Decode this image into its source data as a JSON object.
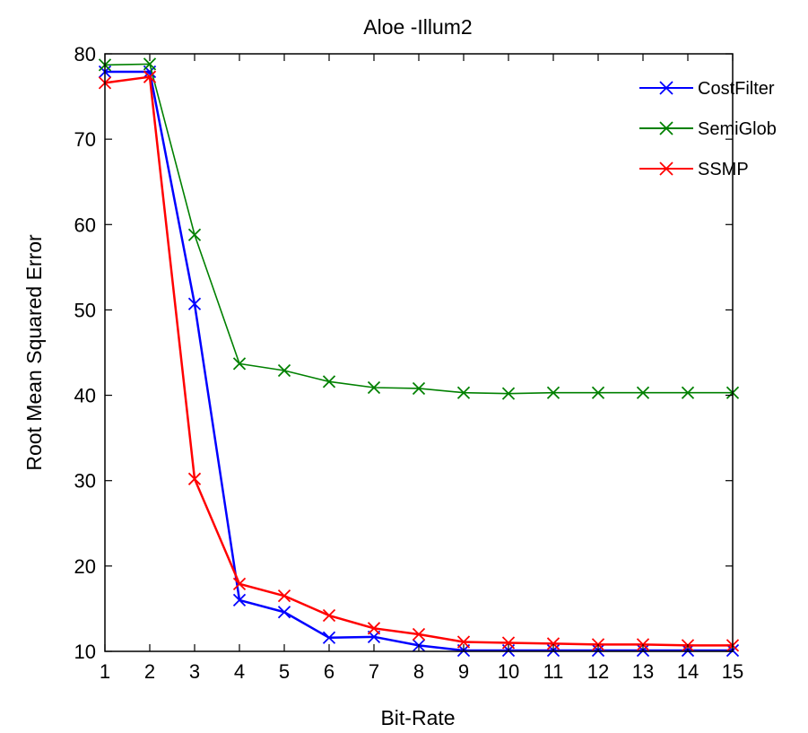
{
  "chart_data": {
    "type": "line",
    "title": "Aloe -Illum2",
    "xlabel": "Bit-Rate",
    "ylabel": "Root Mean Squared Error",
    "xlim": [
      1,
      15
    ],
    "ylim": [
      10,
      80
    ],
    "x": [
      1,
      2,
      3,
      4,
      5,
      6,
      7,
      8,
      9,
      10,
      11,
      12,
      13,
      14,
      15
    ],
    "xticks": [
      "1",
      "2",
      "3",
      "4",
      "5",
      "6",
      "7",
      "8",
      "9",
      "10",
      "11",
      "12",
      "13",
      "14",
      "15"
    ],
    "yticks": [
      "10",
      "20",
      "30",
      "40",
      "50",
      "60",
      "70",
      "80"
    ],
    "grid": false,
    "legend": "top-right",
    "series": [
      {
        "name": "CostFilter",
        "color": "#0000ff",
        "marker": "x",
        "values": [
          77.9,
          77.9,
          50.7,
          16.0,
          14.6,
          11.6,
          11.7,
          10.7,
          10.1,
          10.1,
          10.1,
          10.1,
          10.1,
          10.1,
          10.1
        ]
      },
      {
        "name": "SemiGlob",
        "color": "#008000",
        "marker": "x",
        "values": [
          78.7,
          78.8,
          58.8,
          43.7,
          42.9,
          41.6,
          40.9,
          40.8,
          40.3,
          40.2,
          40.3,
          40.3,
          40.3,
          40.3,
          40.3
        ]
      },
      {
        "name": "SSMP",
        "color": "#ff0000",
        "marker": "x",
        "values": [
          76.6,
          77.3,
          30.2,
          17.9,
          16.5,
          14.2,
          12.7,
          12.0,
          11.1,
          11.0,
          10.9,
          10.8,
          10.8,
          10.7,
          10.7
        ]
      }
    ]
  }
}
